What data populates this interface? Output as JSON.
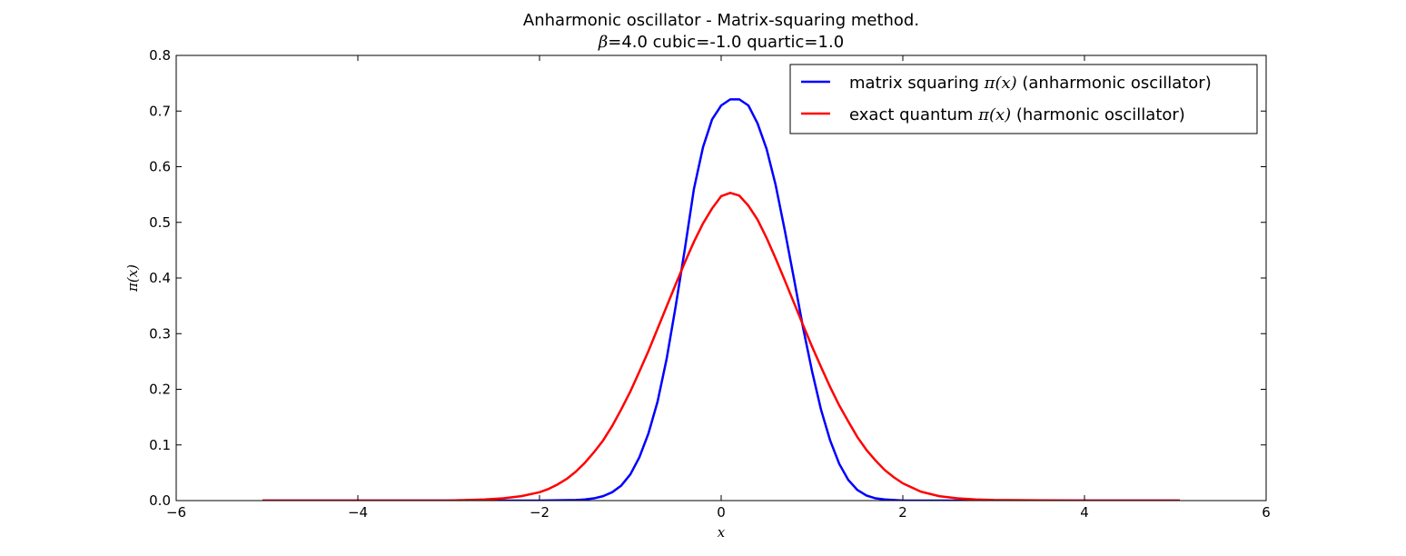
{
  "chart_data": {
    "type": "line",
    "title": "Anharmonic oscillator - Matrix-squaring method.",
    "subtitle": {
      "beta_symbol": "β",
      "rest": "=4.0 cubic=-1.0 quartic=1.0"
    },
    "xlabel": "x",
    "ylabel": "π(x)",
    "xlim": [
      -6,
      6
    ],
    "ylim": [
      0,
      0.8
    ],
    "xticks": [
      -6,
      -4,
      -2,
      0,
      2,
      4,
      6
    ],
    "xtick_labels": [
      "−6",
      "−4",
      "−2",
      "0",
      "2",
      "4",
      "6"
    ],
    "yticks": [
      0.0,
      0.1,
      0.2,
      0.3,
      0.4,
      0.5,
      0.6,
      0.7,
      0.8
    ],
    "ytick_labels": [
      "0.0",
      "0.1",
      "0.2",
      "0.3",
      "0.4",
      "0.5",
      "0.6",
      "0.7",
      "0.8"
    ],
    "grid": false,
    "legend_position": "top-right",
    "series": [
      {
        "name": "matrix squaring π(x) (anharmonic oscillator)",
        "legend_parts": {
          "before": "matrix squaring ",
          "math": "π(x)",
          "after": " (anharmonic oscillator)"
        },
        "color": "#0000ff",
        "x": [
          -5.05,
          -3.0,
          -2.0,
          -1.6,
          -1.5,
          -1.4,
          -1.3,
          -1.2,
          -1.1,
          -1.0,
          -0.9,
          -0.8,
          -0.7,
          -0.6,
          -0.5,
          -0.4,
          -0.3,
          -0.2,
          -0.1,
          0.0,
          0.1,
          0.2,
          0.3,
          0.4,
          0.5,
          0.6,
          0.7,
          0.8,
          0.9,
          1.0,
          1.1,
          1.2,
          1.3,
          1.4,
          1.5,
          1.6,
          1.7,
          1.8,
          1.9,
          2.0,
          2.2,
          2.5,
          3.0,
          5.05
        ],
        "y": [
          0.0,
          0.0,
          0.0,
          0.001,
          0.002,
          0.004,
          0.008,
          0.015,
          0.027,
          0.047,
          0.078,
          0.121,
          0.178,
          0.255,
          0.35,
          0.452,
          0.56,
          0.635,
          0.685,
          0.71,
          0.721,
          0.721,
          0.71,
          0.678,
          0.632,
          0.567,
          0.486,
          0.4,
          0.312,
          0.233,
          0.163,
          0.108,
          0.066,
          0.037,
          0.019,
          0.009,
          0.004,
          0.002,
          0.001,
          0.0,
          0.0,
          0.0,
          0.0,
          0.0
        ]
      },
      {
        "name": "exact quantum π(x) (harmonic oscillator)",
        "legend_parts": {
          "before": "exact quantum ",
          "math": "π(x)",
          "after": " (harmonic oscillator)"
        },
        "color": "#ff0000",
        "x": [
          -5.05,
          -4.0,
          -3.0,
          -2.8,
          -2.6,
          -2.4,
          -2.2,
          -2.0,
          -1.9,
          -1.8,
          -1.7,
          -1.6,
          -1.5,
          -1.4,
          -1.3,
          -1.2,
          -1.1,
          -1.0,
          -0.9,
          -0.8,
          -0.7,
          -0.6,
          -0.5,
          -0.4,
          -0.3,
          -0.2,
          -0.1,
          0.0,
          0.1,
          0.2,
          0.3,
          0.4,
          0.5,
          0.6,
          0.7,
          0.8,
          0.9,
          1.0,
          1.1,
          1.2,
          1.3,
          1.4,
          1.5,
          1.6,
          1.7,
          1.8,
          1.9,
          2.0,
          2.2,
          2.4,
          2.6,
          2.8,
          3.0,
          4.0,
          5.05
        ],
        "y": [
          0.0,
          0.0,
          0.0,
          0.001,
          0.002,
          0.004,
          0.008,
          0.015,
          0.021,
          0.029,
          0.039,
          0.052,
          0.068,
          0.087,
          0.108,
          0.134,
          0.164,
          0.196,
          0.232,
          0.269,
          0.309,
          0.349,
          0.389,
          0.428,
          0.465,
          0.498,
          0.525,
          0.547,
          0.553,
          0.548,
          0.53,
          0.505,
          0.472,
          0.435,
          0.396,
          0.356,
          0.316,
          0.277,
          0.24,
          0.204,
          0.171,
          0.142,
          0.114,
          0.091,
          0.072,
          0.055,
          0.042,
          0.031,
          0.016,
          0.008,
          0.004,
          0.002,
          0.001,
          0.0,
          0.0
        ]
      }
    ]
  }
}
